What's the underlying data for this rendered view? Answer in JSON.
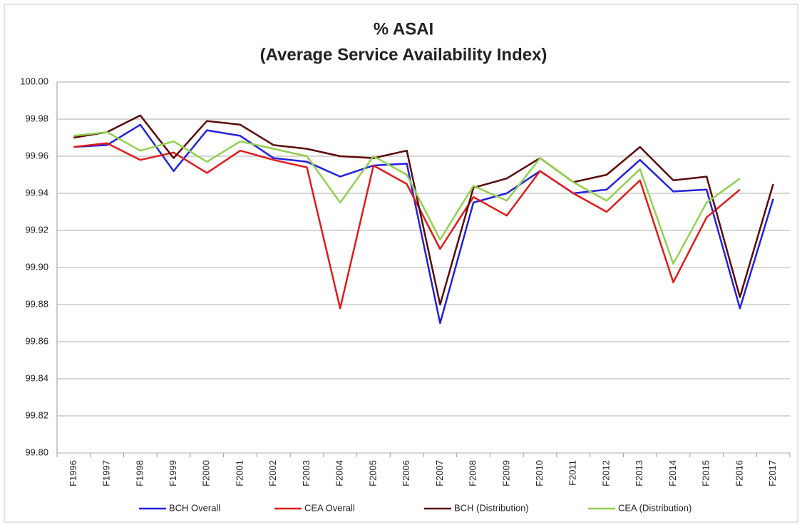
{
  "chart_data": {
    "type": "line",
    "title": "% ASAI",
    "subtitle": "(Average Service Availability Index)",
    "categories": [
      "F1996",
      "F1997",
      "F1998",
      "F1999",
      "F2000",
      "F2001",
      "F2002",
      "F2003",
      "F2004",
      "F2005",
      "F2006",
      "F2007",
      "F2008",
      "F2009",
      "F2010",
      "F2011",
      "F2012",
      "F2013",
      "F2014",
      "F2015",
      "F2016",
      "F2017"
    ],
    "series": [
      {
        "name": "BCH Overall",
        "color": "#2222dd",
        "values": [
          99.965,
          99.966,
          99.977,
          99.952,
          99.974,
          99.971,
          99.959,
          99.957,
          99.949,
          99.955,
          99.956,
          99.87,
          99.935,
          99.94,
          99.952,
          99.94,
          99.942,
          99.958,
          99.941,
          99.942,
          99.878,
          99.937
        ]
      },
      {
        "name": "CEA Overall",
        "color": "#e01b1b",
        "values": [
          99.965,
          99.967,
          99.958,
          99.962,
          99.951,
          99.963,
          99.958,
          99.954,
          99.878,
          99.955,
          99.945,
          99.91,
          99.938,
          99.928,
          99.952,
          99.94,
          99.93,
          99.947,
          99.892,
          99.927,
          99.942,
          null
        ]
      },
      {
        "name": "BCH (Distribution)",
        "color": "#5c0a0a",
        "values": [
          99.97,
          99.973,
          99.982,
          99.959,
          99.979,
          99.977,
          99.966,
          99.964,
          99.96,
          99.959,
          99.963,
          99.88,
          99.943,
          99.948,
          99.959,
          99.946,
          99.95,
          99.965,
          99.947,
          99.949,
          99.884,
          99.945
        ]
      },
      {
        "name": "CEA (Distribution)",
        "color": "#92d050",
        "values": [
          99.971,
          99.973,
          99.963,
          99.968,
          99.957,
          99.968,
          99.964,
          99.96,
          99.935,
          99.96,
          99.95,
          99.915,
          99.944,
          99.936,
          99.959,
          99.946,
          99.936,
          99.953,
          99.902,
          99.935,
          99.948,
          null
        ]
      }
    ],
    "ylim": [
      99.8,
      100
    ],
    "yticks": [
      {
        "value": 99.8,
        "label": "99.80"
      },
      99.82,
      99.84,
      99.86,
      99.88,
      {
        "value": 99.9,
        "label": "99.90"
      },
      99.92,
      99.94,
      99.96,
      99.98,
      {
        "value": 100,
        "label": "100.00"
      }
    ],
    "grid": true,
    "legend": "bottom"
  }
}
